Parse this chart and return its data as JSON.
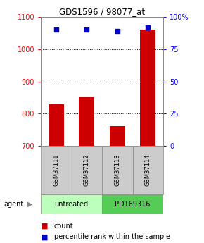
{
  "title": "GDS1596 / 98077_at",
  "samples": [
    "GSM37111",
    "GSM37112",
    "GSM37113",
    "GSM37114"
  ],
  "counts": [
    830,
    850,
    762,
    1060
  ],
  "percentiles": [
    90,
    90,
    89,
    92
  ],
  "ylim_left": [
    700,
    1100
  ],
  "ylim_right": [
    0,
    100
  ],
  "yticks_left": [
    700,
    800,
    900,
    1000,
    1100
  ],
  "yticks_right": [
    0,
    25,
    50,
    75,
    100
  ],
  "ytick_labels_right": [
    "0",
    "25",
    "50",
    "75",
    "100%"
  ],
  "bar_color": "#cc0000",
  "dot_color": "#0000cc",
  "agent_labels": [
    "untreated",
    "PD169316"
  ],
  "agent_colors": [
    "#bbffbb",
    "#55cc55"
  ],
  "sample_box_color": "#cccccc",
  "bar_width": 0.5,
  "legend_count_label": "count",
  "legend_pct_label": "percentile rank within the sample",
  "fig_width": 2.9,
  "fig_height": 3.45,
  "dpi": 100
}
